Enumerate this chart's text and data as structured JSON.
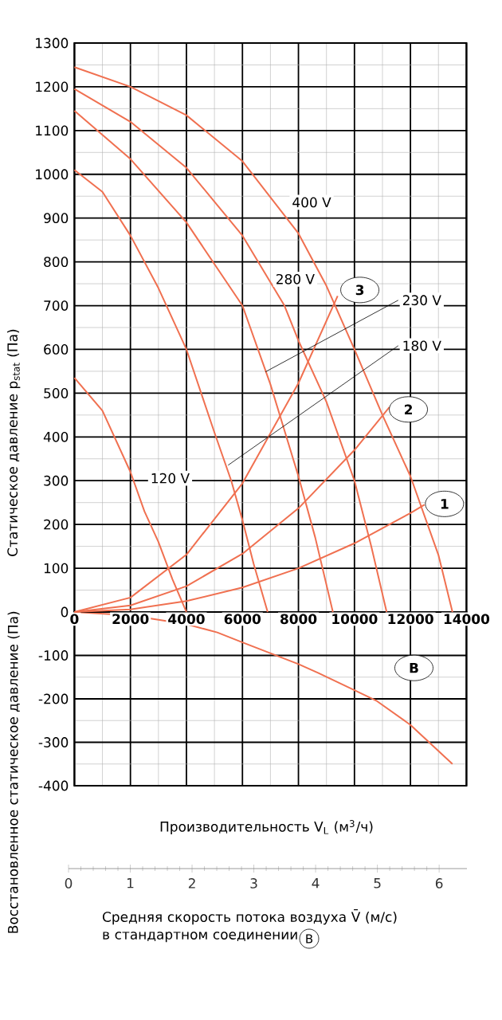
{
  "chart_data": [
    {
      "type": "line",
      "xlim": [
        0,
        14000
      ],
      "xticks": [
        0,
        2000,
        4000,
        6000,
        8000,
        10000,
        12000,
        14000
      ],
      "ylim": [
        0,
        1300
      ],
      "yticks": [
        0,
        100,
        200,
        300,
        400,
        500,
        600,
        700,
        800,
        900,
        1000,
        1100,
        1200,
        1300
      ],
      "ylabel": "Статическое давление p$_{stat}$ (Па)",
      "grid": true,
      "series": [
        {
          "name": "120 V",
          "color": "#f07050",
          "x": [
            0,
            1000,
            2000,
            2500,
            3000,
            3500,
            4000
          ],
          "values": [
            535,
            460,
            320,
            230,
            160,
            75,
            0
          ]
        },
        {
          "name": "180 V",
          "color": "#f07050",
          "x": [
            0,
            1000,
            2000,
            3000,
            4000,
            5000,
            5600,
            6000,
            6400,
            6900
          ],
          "values": [
            1010,
            960,
            860,
            740,
            600,
            410,
            300,
            210,
            110,
            0
          ]
        },
        {
          "name": "230 V",
          "color": "#f07050",
          "x": [
            0,
            2000,
            4000,
            6000,
            7000,
            8000,
            8600,
            9230
          ],
          "values": [
            1145,
            1035,
            890,
            700,
            520,
            310,
            170,
            0
          ]
        },
        {
          "name": "280 V",
          "color": "#f07050",
          "x": [
            0,
            2000,
            4000,
            6000,
            7500,
            8000,
            9000,
            10000,
            10600,
            11150
          ],
          "values": [
            1195,
            1120,
            1015,
            860,
            700,
            620,
            480,
            300,
            150,
            0
          ]
        },
        {
          "name": "400 V",
          "color": "#f07050",
          "x": [
            0,
            2000,
            4000,
            6000,
            8000,
            9000,
            10000,
            11000,
            12000,
            13000,
            13500
          ],
          "values": [
            1245,
            1200,
            1135,
            1030,
            865,
            745,
            600,
            450,
            310,
            130,
            0
          ]
        },
        {
          "name": "1",
          "color": "#f07050",
          "x": [
            0,
            2000,
            4000,
            6000,
            8000,
            10000,
            12000,
            12500
          ],
          "values": [
            0,
            6,
            25,
            56,
            100,
            157,
            226,
            245
          ]
        },
        {
          "name": "2",
          "color": "#f07050",
          "x": [
            0,
            2000,
            4000,
            6000,
            8000,
            10000,
            11250
          ],
          "values": [
            0,
            15,
            59,
            133,
            237,
            370,
            468
          ]
        },
        {
          "name": "3",
          "color": "#f07050",
          "x": [
            0,
            2000,
            4000,
            6000,
            8000,
            9400
          ],
          "values": [
            0,
            33,
            131,
            294,
            523,
            722
          ]
        }
      ]
    },
    {
      "type": "line",
      "xlim": [
        0,
        14000
      ],
      "xticks": [
        0,
        2000,
        4000,
        6000,
        8000,
        10000,
        12000,
        14000
      ],
      "ylim": [
        -400,
        0
      ],
      "yticks": [
        -400,
        -300,
        -200,
        -100
      ],
      "tick_labels": "y",
      "ylabel": "Восстановленное статическое давление (Па)",
      "xlabel": "Производительность V$_{L}$ (м$^{3}$/ч)",
      "x2lim": [
        0,
        6.45
      ],
      "x2ticks": [
        0,
        1,
        2,
        3,
        4,
        5,
        6
      ],
      "x2label": "Средняя скорость потока воздуха V̄ (м/с) в стандартном соединении",
      "annotations": [
        "B"
      ],
      "grid": true,
      "series": [
        {
          "name": "B",
          "color": "#f07050",
          "x": [
            0,
            2000,
            4000,
            5100,
            6000,
            8000,
            8700,
            10000,
            10800,
            12000,
            13500
          ],
          "values": [
            0,
            -8,
            -28,
            -47,
            -70,
            -120,
            -140,
            -180,
            -205,
            -260,
            -350
          ]
        }
      ]
    }
  ]
}
